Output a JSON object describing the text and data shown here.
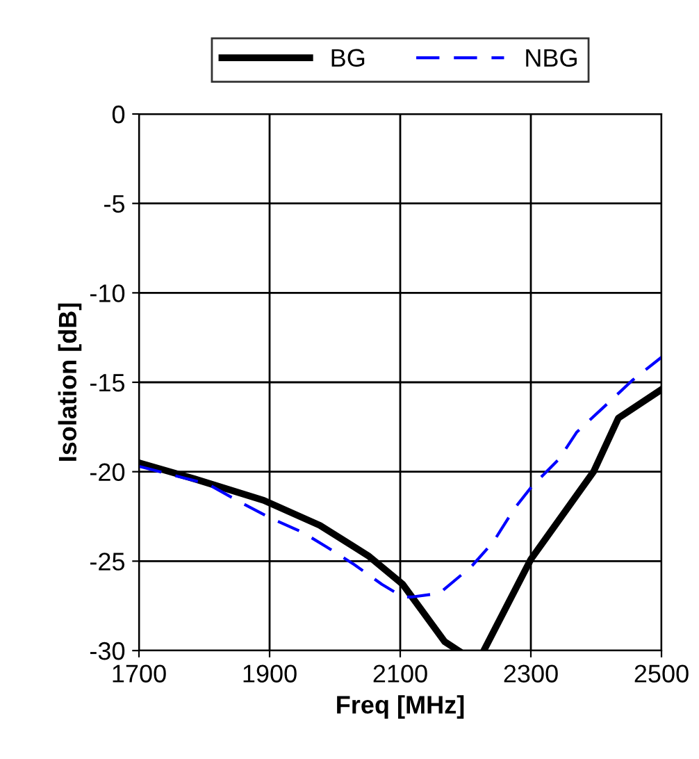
{
  "chart_data": {
    "type": "line",
    "xlabel": "Freq [MHz]",
    "ylabel": "Isolation [dB]",
    "xlim": [
      1700,
      2500
    ],
    "xticks": [
      1700,
      1900,
      2100,
      2300,
      2500
    ],
    "ylim": [
      -30,
      0
    ],
    "yticks": [
      -30,
      -25,
      -20,
      -15,
      -10,
      -5,
      0
    ],
    "grid": true,
    "legend": "top",
    "marker": "none",
    "series": [
      {
        "name": "BG",
        "color": "#000000",
        "line_style": "solid",
        "x": [
          1700,
          1785,
          1891,
          1977,
          2051,
          2104,
          2168,
          2189,
          2210,
          2228,
          2300,
          2396,
          2434,
          2500
        ],
        "values": [
          -19.5,
          -20.4,
          -21.6,
          -23.0,
          -24.7,
          -26.3,
          -29.5,
          -30,
          null,
          -30,
          -24.9,
          -20.0,
          -17.0,
          -15.4
        ]
      },
      {
        "name": "NBG",
        "color": "#0000ff",
        "line_style": "dashed",
        "x": [
          1700,
          1806,
          1860,
          1902,
          1951,
          1987,
          2030,
          2072,
          2104,
          2119,
          2160,
          2209,
          2243,
          2274,
          2302,
          2343,
          2370,
          2423,
          2455,
          2500
        ],
        "values": [
          -19.7,
          -20.7,
          -21.8,
          -22.6,
          -23.4,
          -24.2,
          -25.2,
          -26.3,
          -27.0,
          -27.0,
          -26.8,
          -25.3,
          -23.9,
          -22.1,
          -20.8,
          -19.3,
          -17.8,
          -16.0,
          -14.9,
          -13.6
        ]
      }
    ]
  }
}
